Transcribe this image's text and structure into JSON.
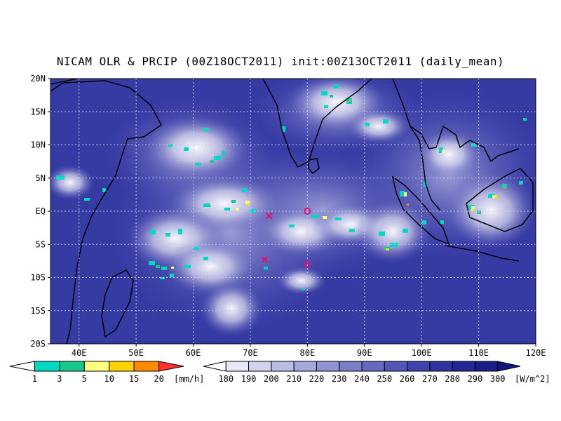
{
  "title": "NICAM OLR & PRCIP (00Z18OCT2011) init:00Z13OCT2011 (daily_mean)",
  "map": {
    "lat_labels": [
      "20N",
      "15N",
      "10N",
      "5N",
      "EQ",
      "5S",
      "10S",
      "15S",
      "20S"
    ],
    "lon_labels": [
      "40E",
      "50E",
      "60E",
      "70E",
      "80E",
      "90E",
      "100E",
      "110E",
      "120E"
    ],
    "lon_range": [
      35,
      120
    ],
    "lat_range": [
      -20,
      20
    ],
    "grid": true,
    "markers": [
      {
        "symbol": "x",
        "lon": 73.3,
        "lat": -0.7,
        "color": "#dd1177"
      },
      {
        "symbol": "x",
        "lon": 72.5,
        "lat": -7.3,
        "color": "#dd1177"
      },
      {
        "symbol": "o",
        "lon": 80,
        "lat": 0,
        "color": "#dd1177"
      },
      {
        "symbol": "o",
        "lon": 80,
        "lat": -8,
        "color": "#dd1177"
      }
    ]
  },
  "precip_legend": {
    "labels": [
      "1",
      "3",
      "5",
      "10",
      "15",
      "20"
    ],
    "unit": "[mm/h]",
    "colors": [
      "#ffffff",
      "#00d9c2",
      "#16c88c",
      "#ffff80",
      "#ffd200",
      "#ff8a00",
      "#ff3030"
    ]
  },
  "olr_legend": {
    "labels": [
      "180",
      "190",
      "200",
      "210",
      "220",
      "230",
      "240",
      "250",
      "260",
      "270",
      "280",
      "290",
      "300"
    ],
    "unit": "[W/m^2]",
    "colors": [
      "#ffffff",
      "#e8e8f6",
      "#d2d3ee",
      "#bcbde5",
      "#a6a8dc",
      "#9193d3",
      "#7b7ec9",
      "#6669c0",
      "#5256b6",
      "#3f44ac",
      "#2f34a0",
      "#222894",
      "#181d88",
      "#111780"
    ]
  }
}
